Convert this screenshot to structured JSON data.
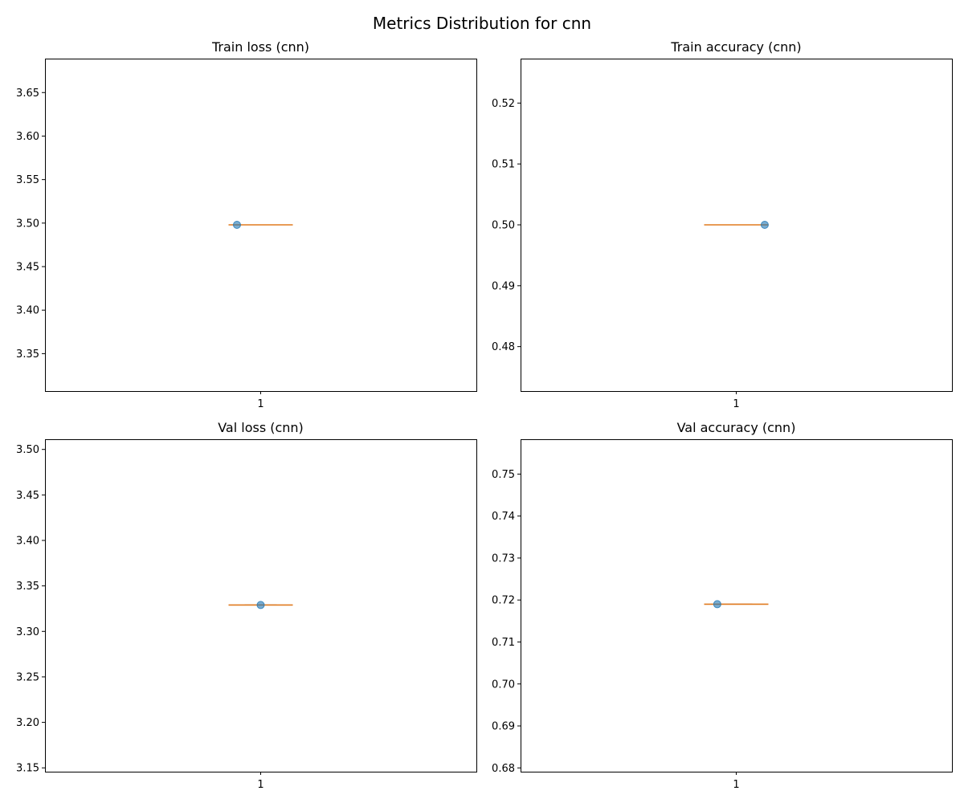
{
  "figure": {
    "title": "Metrics Distribution for cnn"
  },
  "colors": {
    "median": "#e07a1f",
    "point": "#1f77b4",
    "box": "#000000"
  },
  "chart_data": [
    {
      "type": "box",
      "title": "Train loss (cnn)",
      "categories": [
        "1"
      ],
      "values": [
        3.498
      ],
      "median": 3.498,
      "ylim": [
        3.307,
        3.689
      ],
      "yticks": [
        3.35,
        3.4,
        3.45,
        3.5,
        3.55,
        3.6,
        3.65
      ],
      "ytick_labels": [
        "3.35",
        "3.40",
        "3.45",
        "3.50",
        "3.55",
        "3.60",
        "3.65"
      ],
      "jitter": -0.2
    },
    {
      "type": "box",
      "title": "Train accuracy (cnn)",
      "categories": [
        "1"
      ],
      "values": [
        0.5
      ],
      "median": 0.5,
      "ylim": [
        0.4727,
        0.5273
      ],
      "yticks": [
        0.48,
        0.49,
        0.5,
        0.51,
        0.52
      ],
      "ytick_labels": [
        "0.48",
        "0.49",
        "0.50",
        "0.51",
        "0.52"
      ],
      "jitter": 0.24
    },
    {
      "type": "box",
      "title": "Val loss (cnn)",
      "categories": [
        "1"
      ],
      "values": [
        3.329
      ],
      "median": 3.329,
      "ylim": [
        3.1458,
        3.5112
      ],
      "yticks": [
        3.15,
        3.2,
        3.25,
        3.3,
        3.35,
        3.4,
        3.45,
        3.5
      ],
      "ytick_labels": [
        "3.15",
        "3.20",
        "3.25",
        "3.30",
        "3.35",
        "3.40",
        "3.45",
        "3.50"
      ],
      "jitter": 0.0
    },
    {
      "type": "box",
      "title": "Val accuracy (cnn)",
      "categories": [
        "1"
      ],
      "values": [
        0.719
      ],
      "median": 0.719,
      "ylim": [
        0.6791,
        0.7583
      ],
      "yticks": [
        0.68,
        0.69,
        0.7,
        0.71,
        0.72,
        0.73,
        0.74,
        0.75
      ],
      "ytick_labels": [
        "0.68",
        "0.69",
        "0.70",
        "0.71",
        "0.72",
        "0.73",
        "0.74",
        "0.75"
      ],
      "jitter": -0.16
    }
  ]
}
